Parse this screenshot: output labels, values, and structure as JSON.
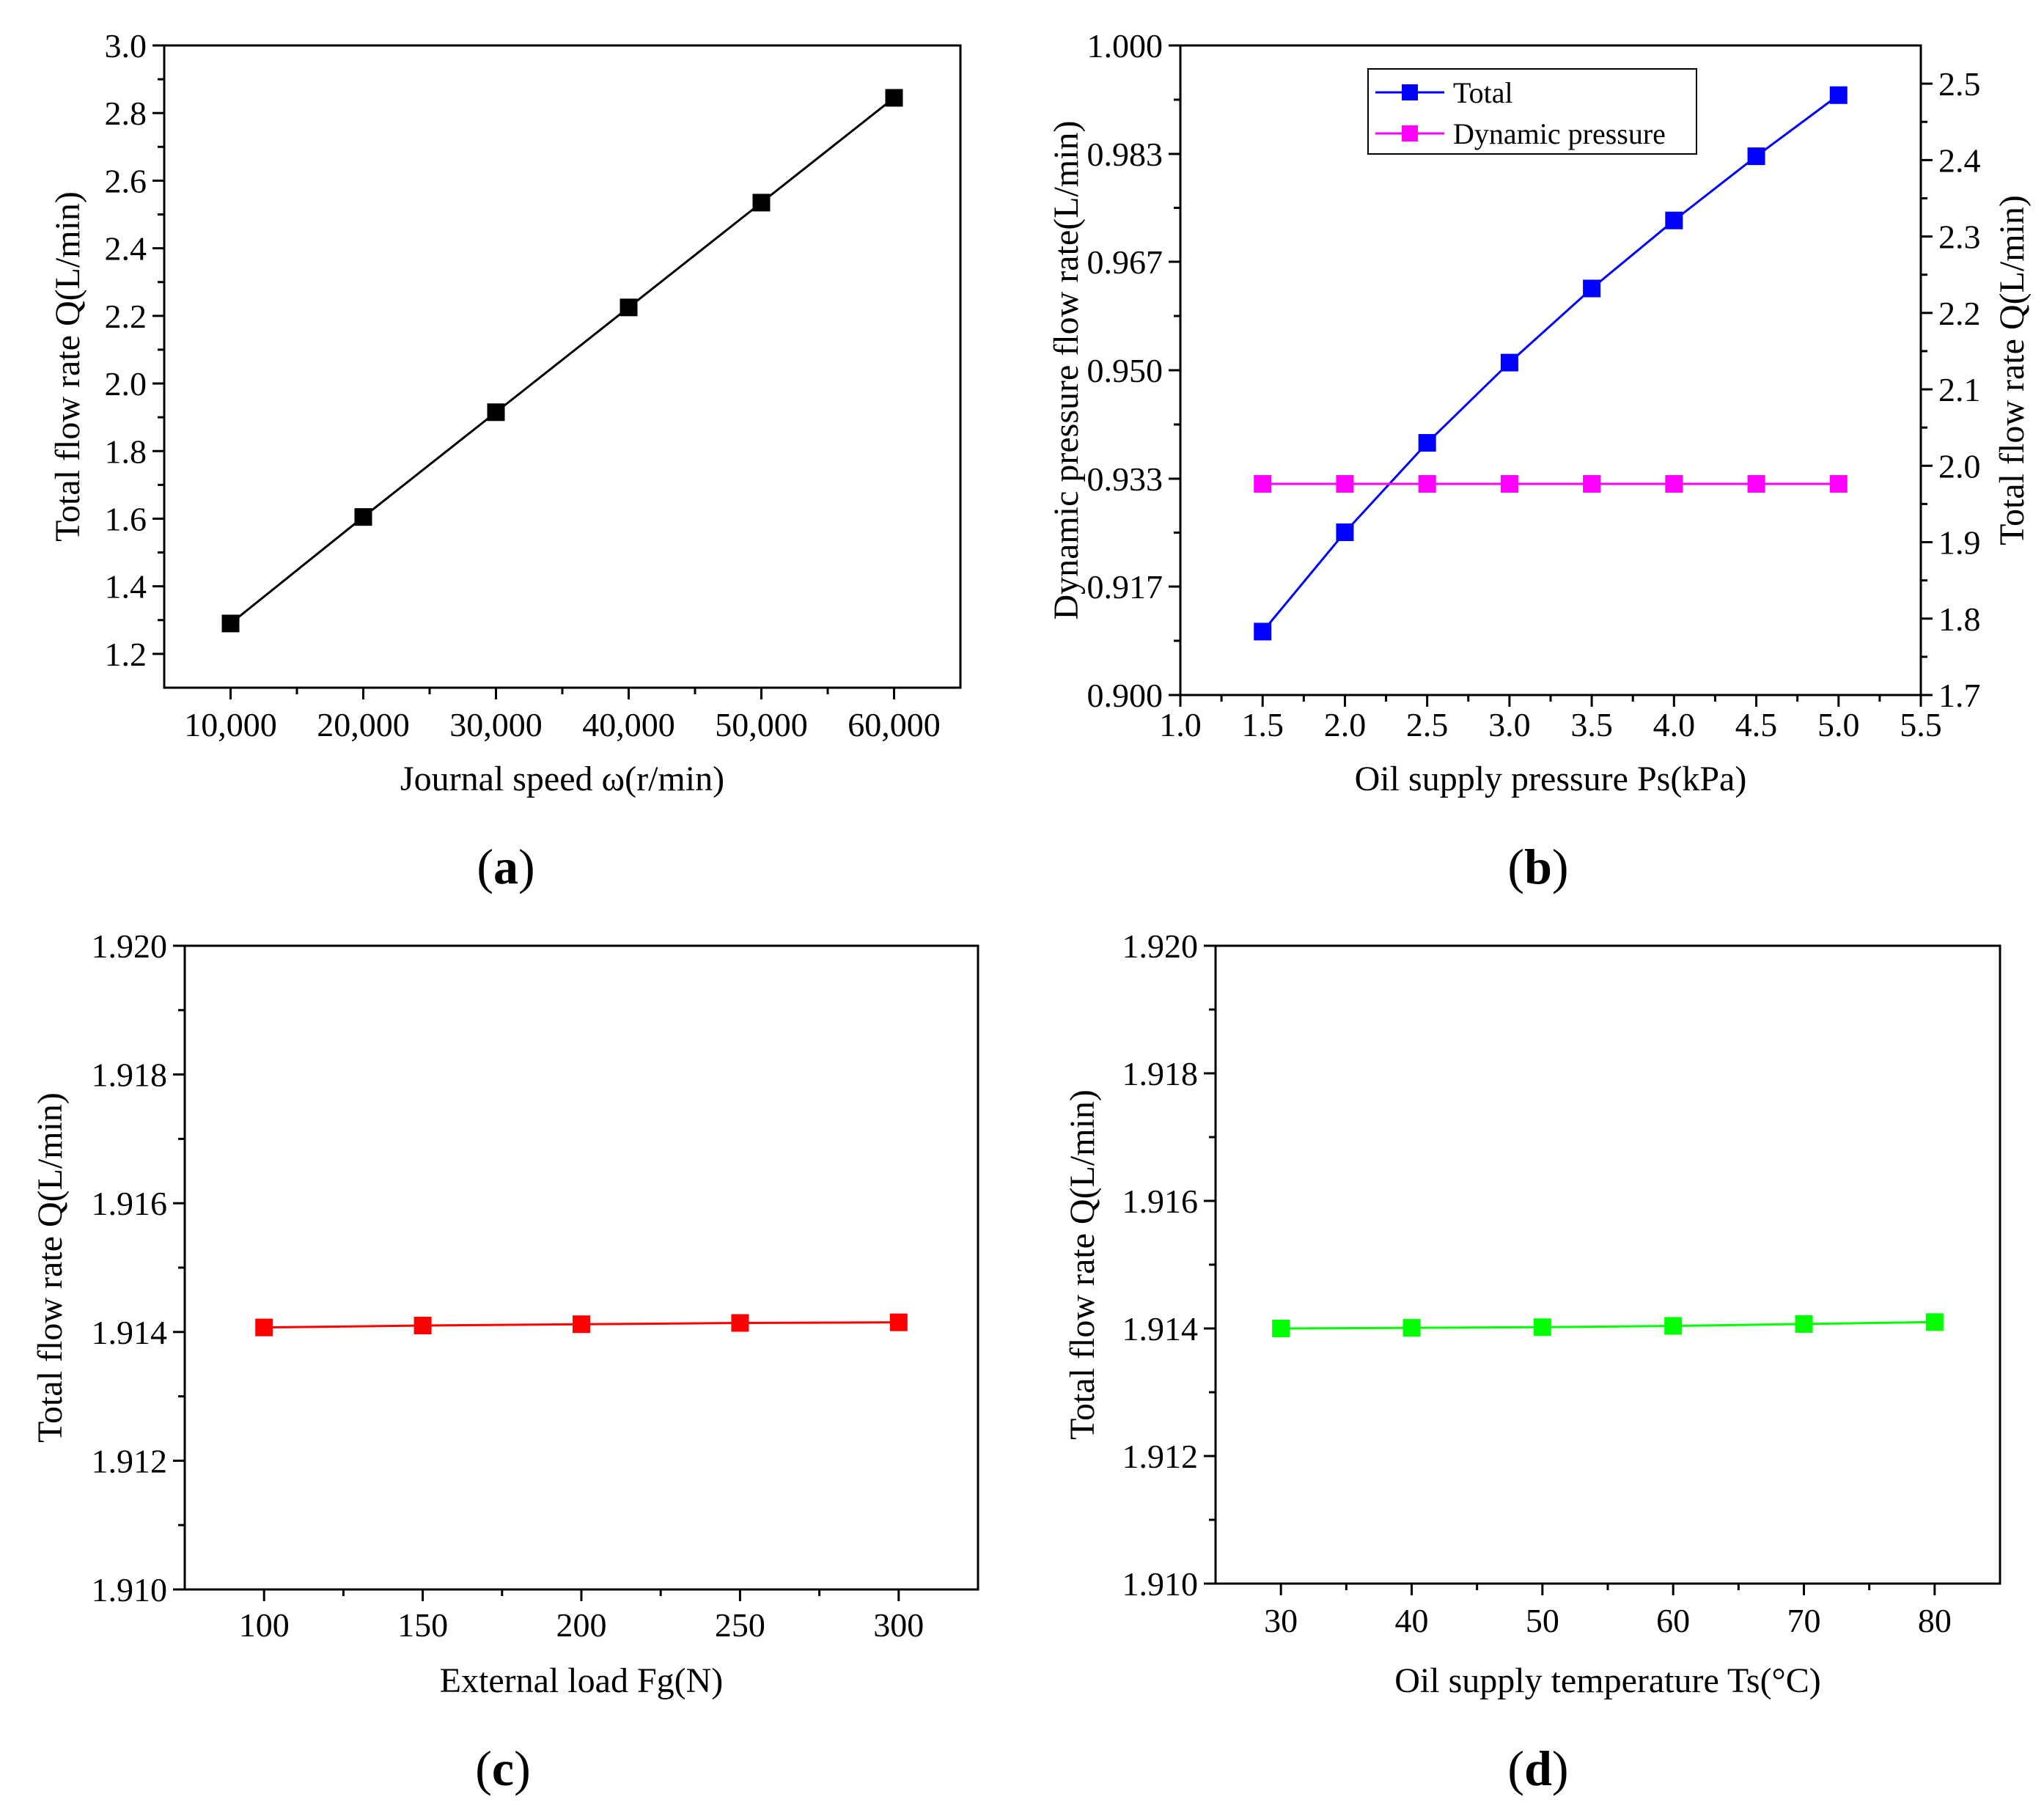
{
  "chart_data": [
    {
      "id": "a",
      "type": "line",
      "panel_label": [
        "(",
        "a",
        ")"
      ],
      "xlabel": "Journal speed ω(r/min)",
      "ylabel": "Total flow rate Q(L/min)",
      "xlim": [
        5000,
        65000
      ],
      "ylim": [
        1.1,
        3.0
      ],
      "x_ticks": [
        10000,
        20000,
        30000,
        40000,
        50000,
        60000
      ],
      "x_tick_labels": [
        "10,000",
        "20,000",
        "30,000",
        "40,000",
        "50,000",
        "60,000"
      ],
      "y_ticks": [
        1.2,
        1.4,
        1.6,
        1.8,
        2.0,
        2.2,
        2.4,
        2.6,
        2.8,
        3.0
      ],
      "y_tick_labels": [
        "1.2",
        "1.4",
        "1.6",
        "1.8",
        "2.0",
        "2.2",
        "2.4",
        "2.6",
        "2.8",
        "3.0"
      ],
      "series": [
        {
          "name": "Total",
          "color": "#000000",
          "x": [
            10000,
            20000,
            30000,
            40000,
            50000,
            60000
          ],
          "values": [
            1.29,
            1.605,
            1.915,
            2.225,
            2.535,
            2.845
          ]
        }
      ]
    },
    {
      "id": "b",
      "type": "line",
      "panel_label": [
        "(",
        "b",
        ")"
      ],
      "xlabel": "Oil supply pressure Ps(kPa)",
      "ylabel": "Dynamic pressure flow rate(L/min)",
      "y2label": "Total flow rate Q(L/min)",
      "xlim": [
        1.0,
        5.5
      ],
      "ylim": [
        0.9,
        1.0
      ],
      "y2lim": [
        1.7,
        2.55
      ],
      "x_ticks": [
        1.0,
        1.5,
        2.0,
        2.5,
        3.0,
        3.5,
        4.0,
        4.5,
        5.0,
        5.5
      ],
      "x_tick_labels": [
        "1.0",
        "1.5",
        "2.0",
        "2.5",
        "3.0",
        "3.5",
        "4.0",
        "4.5",
        "5.0",
        "5.5"
      ],
      "y_ticks": [
        0.9,
        0.9167,
        0.9333,
        0.95,
        0.9667,
        0.9833,
        1.0
      ],
      "y_tick_labels": [
        "0.900",
        "0.917",
        "0.933",
        "0.950",
        "0.967",
        "0.983",
        "1.000"
      ],
      "y2_ticks": [
        1.7,
        1.8,
        1.9,
        2.0,
        2.1,
        2.2,
        2.3,
        2.4,
        2.5
      ],
      "y2_tick_labels": [
        "1.7",
        "1.8",
        "1.9",
        "2.0",
        "2.1",
        "2.2",
        "2.3",
        "2.4",
        "2.5"
      ],
      "legend_position": "top-center",
      "series": [
        {
          "name": "Total",
          "axis": "right",
          "color": "#0000ff",
          "x": [
            1.5,
            2.0,
            2.5,
            3.0,
            3.5,
            4.0,
            4.5,
            5.0
          ],
          "values": [
            1.783,
            1.913,
            2.03,
            2.135,
            2.232,
            2.321,
            2.405,
            2.485
          ]
        },
        {
          "name": "Dynamic pressure",
          "axis": "left",
          "color": "#ff00ff",
          "x": [
            1.5,
            2.0,
            2.5,
            3.0,
            3.5,
            4.0,
            4.5,
            5.0
          ],
          "values": [
            0.9325,
            0.9325,
            0.9325,
            0.9325,
            0.9325,
            0.9325,
            0.9325,
            0.9325
          ]
        }
      ]
    },
    {
      "id": "c",
      "type": "line",
      "panel_label": [
        "(",
        "c",
        ")"
      ],
      "xlabel": "External load Fg(N)",
      "ylabel": "Total flow rate Q(L/min)",
      "xlim": [
        75,
        325
      ],
      "ylim": [
        1.91,
        1.92
      ],
      "x_ticks": [
        100,
        150,
        200,
        250,
        300
      ],
      "x_tick_labels": [
        "100",
        "150",
        "200",
        "250",
        "300"
      ],
      "y_ticks": [
        1.91,
        1.912,
        1.914,
        1.916,
        1.918,
        1.92
      ],
      "y_tick_labels": [
        "1.910",
        "1.912",
        "1.914",
        "1.916",
        "1.918",
        "1.920"
      ],
      "series": [
        {
          "name": "Total",
          "color": "#ff0000",
          "x": [
            100,
            150,
            200,
            250,
            300
          ],
          "values": [
            1.91407,
            1.9141,
            1.91412,
            1.91414,
            1.91415
          ]
        }
      ]
    },
    {
      "id": "d",
      "type": "line",
      "panel_label": [
        "(",
        "d",
        ")"
      ],
      "xlabel": "Oil supply temperature Ts(°C)",
      "ylabel": "Total flow rate Q(L/min)",
      "xlim": [
        25,
        85
      ],
      "ylim": [
        1.91,
        1.92
      ],
      "x_ticks": [
        30,
        40,
        50,
        60,
        70,
        80
      ],
      "x_tick_labels": [
        "30",
        "40",
        "50",
        "60",
        "70",
        "80"
      ],
      "y_ticks": [
        1.91,
        1.912,
        1.914,
        1.916,
        1.918,
        1.92
      ],
      "y_tick_labels": [
        "1.910",
        "1.912",
        "1.914",
        "1.916",
        "1.918",
        "1.920"
      ],
      "series": [
        {
          "name": "Total",
          "color": "#00ff00",
          "x": [
            30,
            40,
            50,
            60,
            70,
            80
          ],
          "values": [
            1.914,
            1.91401,
            1.91402,
            1.91404,
            1.91407,
            1.9141
          ]
        }
      ]
    }
  ]
}
